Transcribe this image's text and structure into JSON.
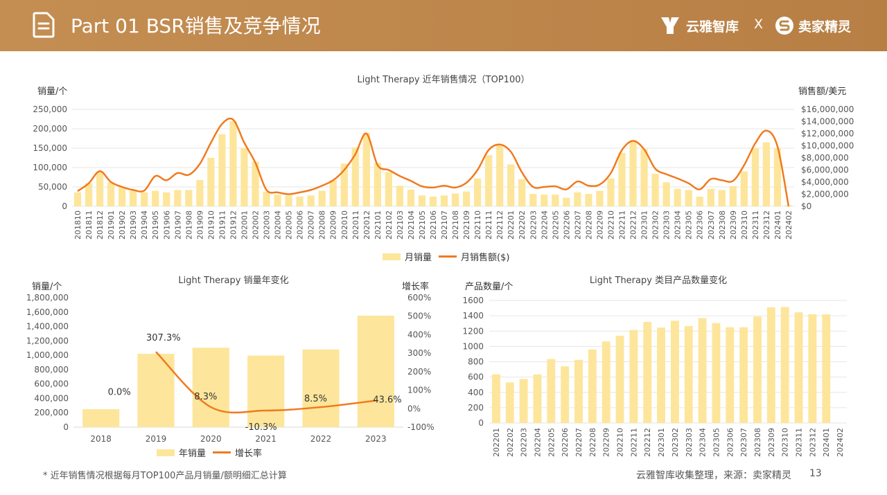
{
  "header": {
    "title": "Part 01  BSR销售及竞争情况",
    "brand1": "云雅智库",
    "separator": "X",
    "brand2": "卖家精灵"
  },
  "colors": {
    "header_bg": "#be874b",
    "bar": "#fde69b",
    "line": "#f07a1e"
  },
  "chart_data": [
    {
      "type": "bar+line",
      "title": "Light Therapy 近年销售情况（TOP100）",
      "ylabel_left": "销量/个",
      "ylabel_right": "销售额/美元",
      "left_ticks": [
        "250,000",
        "200,000",
        "150,000",
        "100,000",
        "50,000",
        "0"
      ],
      "right_ticks": [
        "$16,000,000",
        "$14,000,000",
        "$12,000,000",
        "$10,000,000",
        "$8,000,000",
        "$6,000,000",
        "$4,000,000",
        "$2,000,000",
        "$0"
      ],
      "ylim_left": [
        0,
        250000
      ],
      "ylim_right": [
        0,
        16000000
      ],
      "categories": [
        "201810",
        "201811",
        "201812",
        "201901",
        "201902",
        "201903",
        "201904",
        "201905",
        "201906",
        "201907",
        "201908",
        "201909",
        "201910",
        "201911",
        "201912",
        "202001",
        "202002",
        "202003",
        "202004",
        "202005",
        "202006",
        "202007",
        "202008",
        "202009",
        "202010",
        "202011",
        "202012",
        "202101",
        "202102",
        "202103",
        "202104",
        "202105",
        "202106",
        "202107",
        "202108",
        "202109",
        "202110",
        "202111",
        "202112",
        "202201",
        "202202",
        "202203",
        "202204",
        "202205",
        "202206",
        "202207",
        "202208",
        "202209",
        "202210",
        "202211",
        "202212",
        "202301",
        "202302",
        "202303",
        "202304",
        "202305",
        "202306",
        "202307",
        "202308",
        "202309",
        "202310",
        "202311",
        "202312",
        "202401",
        "202402"
      ],
      "series": [
        {
          "name": "月销量",
          "kind": "bar",
          "values": [
            36000,
            60000,
            90000,
            62000,
            50000,
            40000,
            36000,
            40000,
            36000,
            42000,
            42000,
            68000,
            125000,
            186000,
            220000,
            150000,
            115000,
            38000,
            30000,
            28000,
            25000,
            28000,
            40000,
            68000,
            110000,
            152000,
            190000,
            112000,
            88000,
            53000,
            43000,
            28000,
            25000,
            28000,
            33000,
            38000,
            72000,
            132000,
            160000,
            108000,
            70000,
            32000,
            30000,
            30000,
            22000,
            36000,
            32000,
            40000,
            72000,
            138000,
            170000,
            148000,
            84000,
            62000,
            45000,
            42000,
            25000,
            45000,
            42000,
            52000,
            90000,
            150000,
            165000,
            150000,
            3000
          ]
        },
        {
          "name": "月销售额($)",
          "kind": "line",
          "values": [
            2500000,
            3800000,
            5800000,
            4000000,
            3200000,
            2700000,
            2600000,
            5000000,
            4300000,
            5500000,
            5200000,
            7000000,
            10500000,
            13600000,
            14300000,
            10500000,
            7200000,
            2700000,
            2300000,
            2000000,
            2300000,
            2700000,
            3400000,
            4300000,
            6000000,
            8600000,
            12000000,
            6800000,
            6000000,
            5000000,
            4200000,
            3300000,
            3100000,
            3400000,
            3100000,
            3900000,
            6000000,
            9300000,
            10200000,
            9000000,
            5600000,
            3200000,
            3200000,
            3300000,
            2800000,
            4100000,
            3400000,
            3600000,
            5500000,
            9300000,
            10800000,
            9400000,
            6200000,
            5300000,
            4600000,
            3800000,
            2800000,
            4500000,
            4300000,
            4200000,
            6800000,
            10400000,
            12500000,
            9900000,
            0
          ]
        }
      ]
    },
    {
      "type": "bar+line",
      "title": "Light Therapy 销量年变化",
      "ylabel_left": "销量/个",
      "ylabel_right": "增长率",
      "left_ticks": [
        "1,800,000",
        "1,600,000",
        "1,400,000",
        "1,200,000",
        "1,000,000",
        "800,000",
        "600,000",
        "400,000",
        "200,000",
        "0"
      ],
      "right_ticks": [
        "600%",
        "500%",
        "400%",
        "300%",
        "200%",
        "100%",
        "0%",
        "-100%"
      ],
      "ylim_left": [
        0,
        1800000
      ],
      "ylim_right": [
        -100,
        600
      ],
      "categories": [
        "2018",
        "2019",
        "2020",
        "2021",
        "2022",
        "2023"
      ],
      "series": [
        {
          "name": "年销量",
          "kind": "bar",
          "values": [
            250000,
            1020000,
            1105000,
            995000,
            1080000,
            1550000
          ]
        },
        {
          "name": "增长率",
          "kind": "line",
          "values": [
            null,
            307.3,
            8.3,
            -10.3,
            8.5,
            43.6
          ]
        }
      ],
      "data_labels": [
        "0.0%",
        "307.3%",
        "8.3%",
        "-10.3%",
        "8.5%",
        "43.6%"
      ]
    },
    {
      "type": "bar",
      "title": "Light Therapy 类目产品数量变化",
      "ylabel": "产品数量/个",
      "ticks": [
        "1600",
        "1400",
        "1200",
        "1000",
        "800",
        "600",
        "400",
        "200",
        "0"
      ],
      "ylim": [
        0,
        1600
      ],
      "categories": [
        "202201",
        "202202",
        "202203",
        "202204",
        "202205",
        "202206",
        "202207",
        "202208",
        "202209",
        "202210",
        "202211",
        "202212",
        "202301",
        "202302",
        "202303",
        "202304",
        "202305",
        "202306",
        "202307",
        "202308",
        "202309",
        "202310",
        "202311",
        "202312",
        "202401",
        "202402"
      ],
      "values": [
        635,
        530,
        575,
        635,
        835,
        740,
        825,
        960,
        1065,
        1140,
        1215,
        1320,
        1245,
        1335,
        1265,
        1370,
        1305,
        1250,
        1250,
        1390,
        1510,
        1515,
        1445,
        1420,
        1420,
        null
      ]
    }
  ],
  "footer": {
    "footnote": "* 近年销售情况根据每月TOP100产品月销量/额明细汇总计算",
    "source": "云雅智库收集整理，来源：卖家精灵",
    "page": "13"
  }
}
